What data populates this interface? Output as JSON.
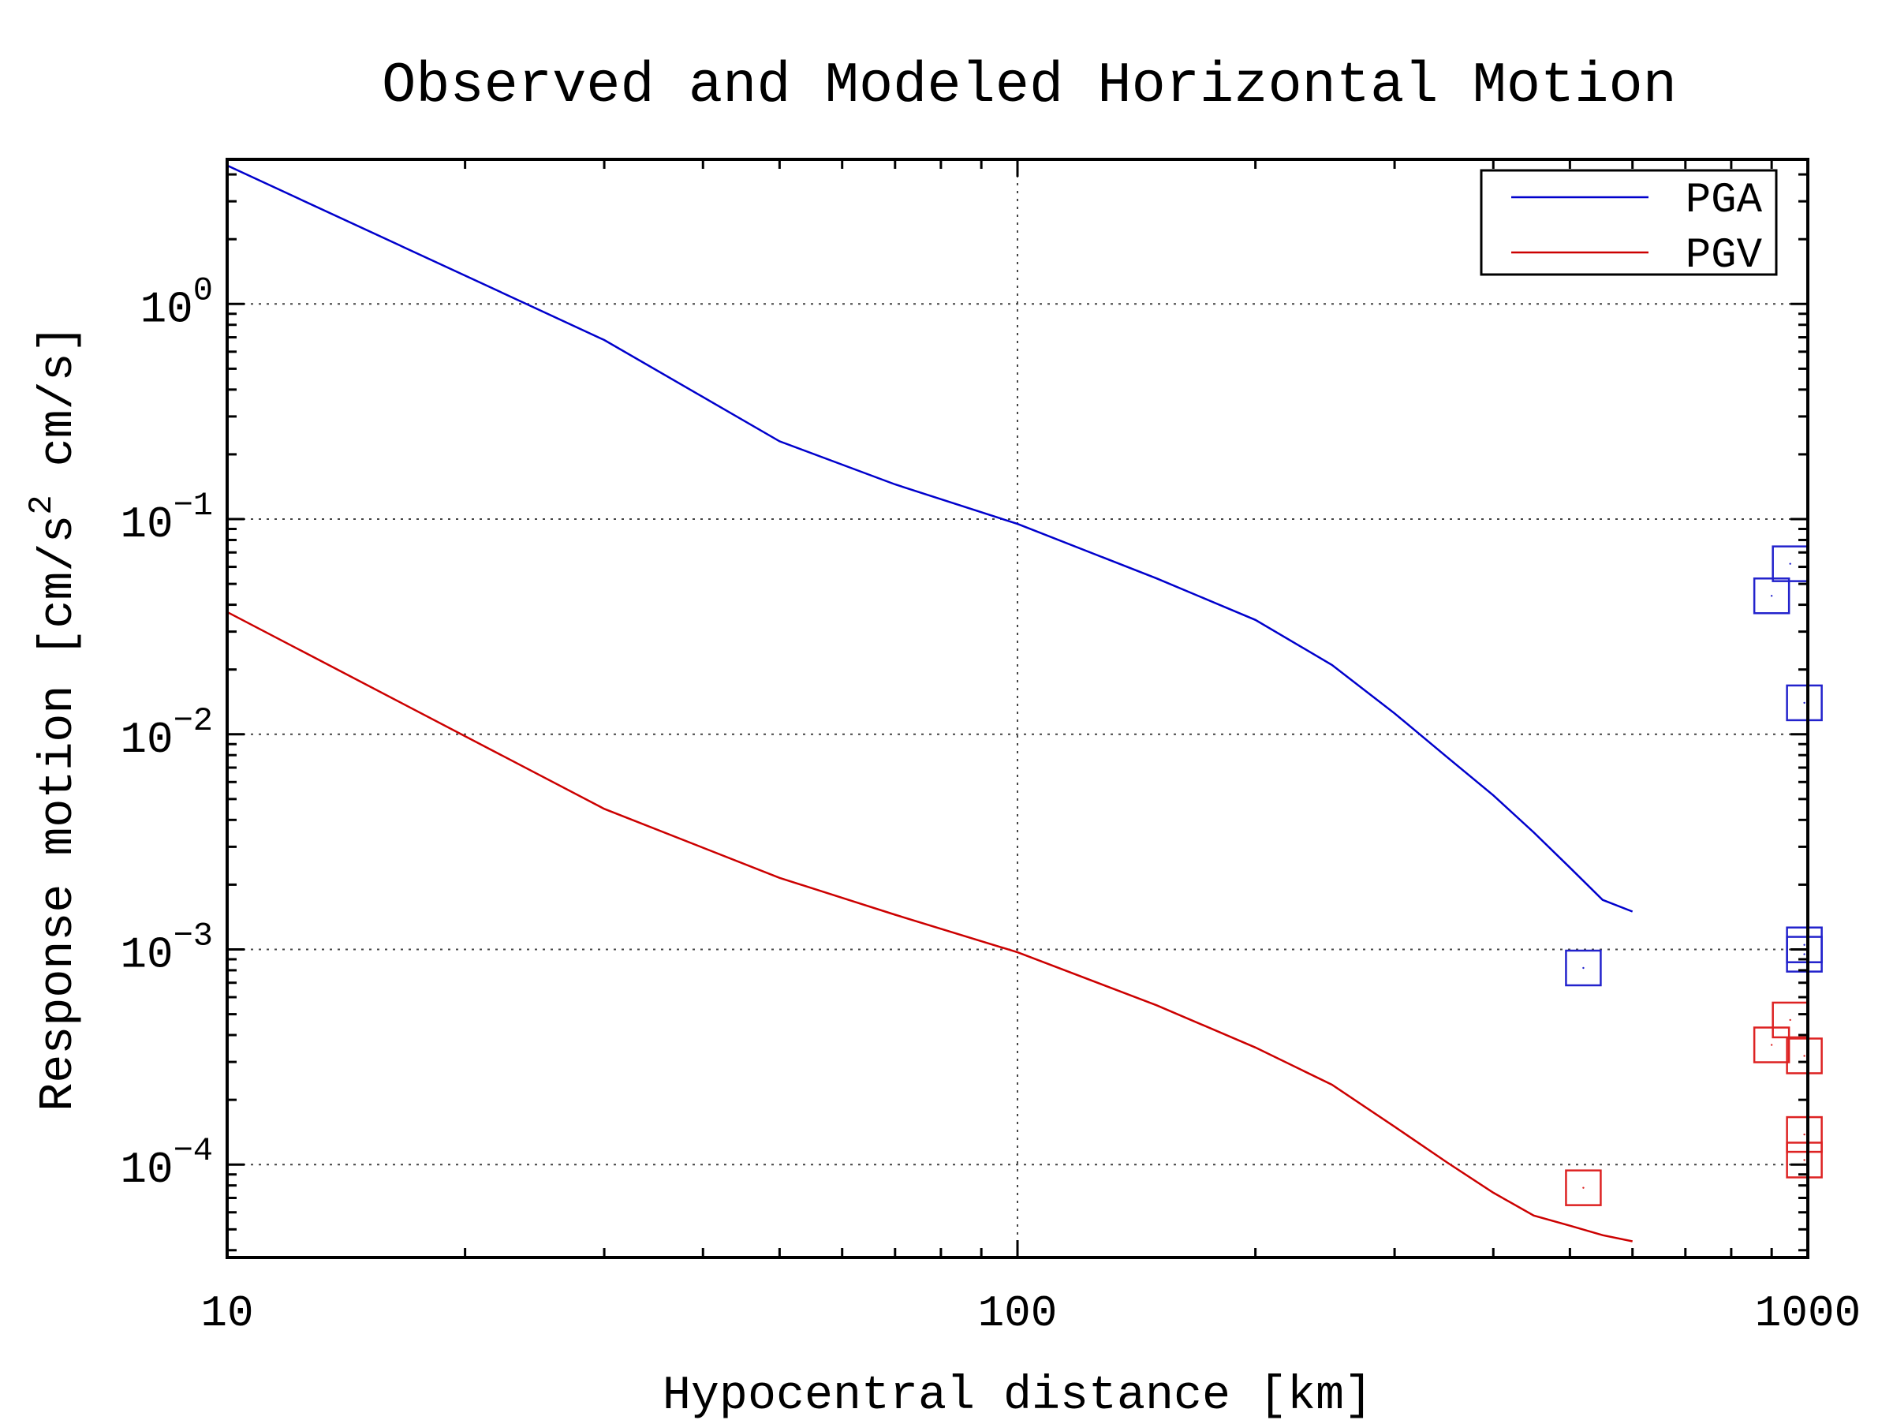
{
  "chart_data": {
    "type": "line",
    "title": "Observed and Modeled Horizontal Motion",
    "xlabel": "Hypocentral distance [km]",
    "ylabel": {
      "prefix": "Response motion [cm/s",
      "superscript": "2",
      "suffix": " cm/s]"
    },
    "xscale": "log",
    "yscale": "log",
    "xlim": [
      10,
      1000
    ],
    "ylim": [
      3.7e-05,
      4.7
    ],
    "x_ticks": [
      {
        "value": 10,
        "label": "10"
      },
      {
        "value": 100,
        "label": "100"
      },
      {
        "value": 1000,
        "label": "1000"
      }
    ],
    "y_ticks": [
      {
        "value": 0.0001,
        "base": "10",
        "exponent": "−4"
      },
      {
        "value": 0.001,
        "base": "10",
        "exponent": "−3"
      },
      {
        "value": 0.01,
        "base": "10",
        "exponent": "−2"
      },
      {
        "value": 0.1,
        "base": "10",
        "exponent": "−1"
      },
      {
        "value": 1,
        "base": "10",
        "exponent": "0"
      }
    ],
    "grid": true,
    "legend": {
      "placement": "top-right"
    },
    "series": [
      {
        "name": "PGA",
        "color": "#0000cc",
        "x": [
          10,
          30,
          50,
          70,
          100,
          150,
          200,
          250,
          300,
          350,
          400,
          450,
          500,
          550,
          600
        ],
        "y": [
          4.4,
          0.68,
          0.23,
          0.145,
          0.095,
          0.053,
          0.034,
          0.021,
          0.0125,
          0.0078,
          0.0052,
          0.0035,
          0.0024,
          0.0017,
          0.0015
        ]
      },
      {
        "name": "PGV",
        "color": "#cc0000",
        "x": [
          10,
          30,
          50,
          70,
          100,
          150,
          200,
          250,
          300,
          350,
          400,
          450,
          500,
          550,
          600
        ],
        "y": [
          0.037,
          0.0045,
          0.00215,
          0.00145,
          0.00097,
          0.00055,
          0.00035,
          0.000235,
          0.00015,
          0.000102,
          7.4e-05,
          5.8e-05,
          5.2e-05,
          4.7e-05,
          4.4e-05
        ]
      }
    ],
    "observations": [
      {
        "series": "PGA",
        "color": "#2222cc",
        "points": [
          {
            "x": 520,
            "y": 0.00082
          },
          {
            "x": 950,
            "y": 0.062
          },
          {
            "x": 900,
            "y": 0.044
          },
          {
            "x": 990,
            "y": 0.014
          },
          {
            "x": 990,
            "y": 0.00105
          },
          {
            "x": 990,
            "y": 0.00095
          }
        ]
      },
      {
        "series": "PGV",
        "color": "#dd2222",
        "points": [
          {
            "x": 520,
            "y": 7.8e-05
          },
          {
            "x": 950,
            "y": 0.00047
          },
          {
            "x": 900,
            "y": 0.00036
          },
          {
            "x": 990,
            "y": 0.00032
          },
          {
            "x": 990,
            "y": 0.000138
          },
          {
            "x": 990,
            "y": 0.000105
          }
        ]
      }
    ]
  }
}
